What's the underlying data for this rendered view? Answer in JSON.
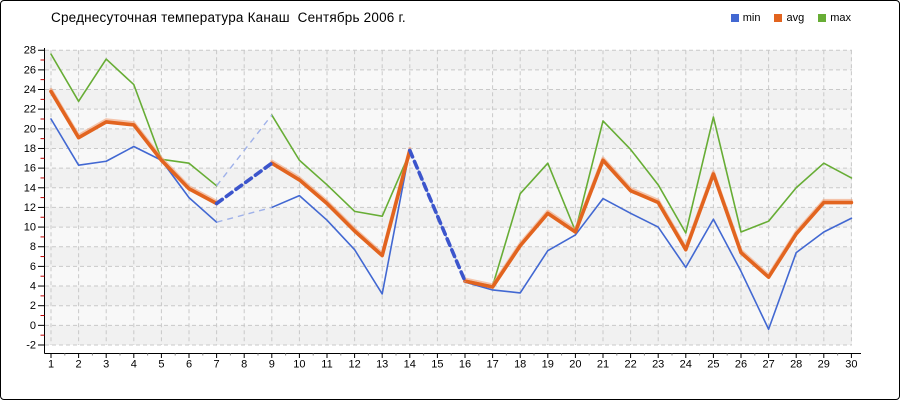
{
  "chart_data": {
    "type": "line",
    "title": "Среднесуточная температура Канаш  Сентябрь 2006 г.",
    "x": [
      1,
      2,
      3,
      4,
      5,
      6,
      7,
      8,
      9,
      10,
      11,
      12,
      13,
      14,
      15,
      16,
      17,
      18,
      19,
      20,
      21,
      22,
      23,
      24,
      25,
      26,
      27,
      28,
      29,
      30
    ],
    "xlabel": "",
    "ylabel": "",
    "ylim": [
      -2,
      28
    ],
    "y_tick_step": 2,
    "grid": true,
    "legend_position": "top-right",
    "missing_days": [
      8,
      15
    ],
    "interpolated_gaps_drawn_dashed": true,
    "colors": {
      "min_line": "#4268d2",
      "avg_line": "#e2641f",
      "avg_halo": "#f2a178",
      "max_line": "#67ad35",
      "bridge_thick": "#3c55cc",
      "bridge_thin": "#9fb1e9",
      "gridline": "#c9c9c9",
      "axis": "#000000",
      "minor_tick": "#c00000",
      "stripe_dark": "#f1f1f1",
      "stripe_light": "#f8f8f8"
    },
    "series": [
      {
        "name": "min",
        "color": "#4268d2",
        "width": 1.6,
        "values": [
          21.0,
          16.3,
          16.7,
          18.2,
          16.8,
          13.0,
          10.5,
          null,
          12.0,
          13.2,
          10.7,
          7.7,
          3.2,
          17.9,
          null,
          4.4,
          3.6,
          3.3,
          7.6,
          9.2,
          12.9,
          11.4,
          10.0,
          5.9,
          10.8,
          5.5,
          -0.4,
          7.4,
          9.5,
          10.9
        ]
      },
      {
        "name": "avg",
        "color": "#e2641f",
        "width": 3.6,
        "values": [
          23.8,
          19.1,
          20.7,
          20.4,
          16.8,
          13.9,
          12.4,
          null,
          16.5,
          14.8,
          12.4,
          9.6,
          7.1,
          17.8,
          null,
          4.5,
          3.9,
          8.1,
          11.4,
          9.5,
          16.8,
          13.7,
          12.5,
          7.7,
          15.4,
          7.4,
          4.9,
          9.3,
          12.5,
          12.5
        ]
      },
      {
        "name": "max",
        "color": "#67ad35",
        "width": 1.6,
        "values": [
          27.6,
          22.8,
          27.1,
          24.5,
          16.9,
          16.5,
          14.2,
          null,
          21.4,
          16.8,
          14.3,
          11.6,
          11.1,
          17.6,
          null,
          4.6,
          4.0,
          13.4,
          16.5,
          9.6,
          20.8,
          17.9,
          14.3,
          9.4,
          21.2,
          9.5,
          10.6,
          14.0,
          16.5,
          15.0
        ]
      }
    ]
  }
}
